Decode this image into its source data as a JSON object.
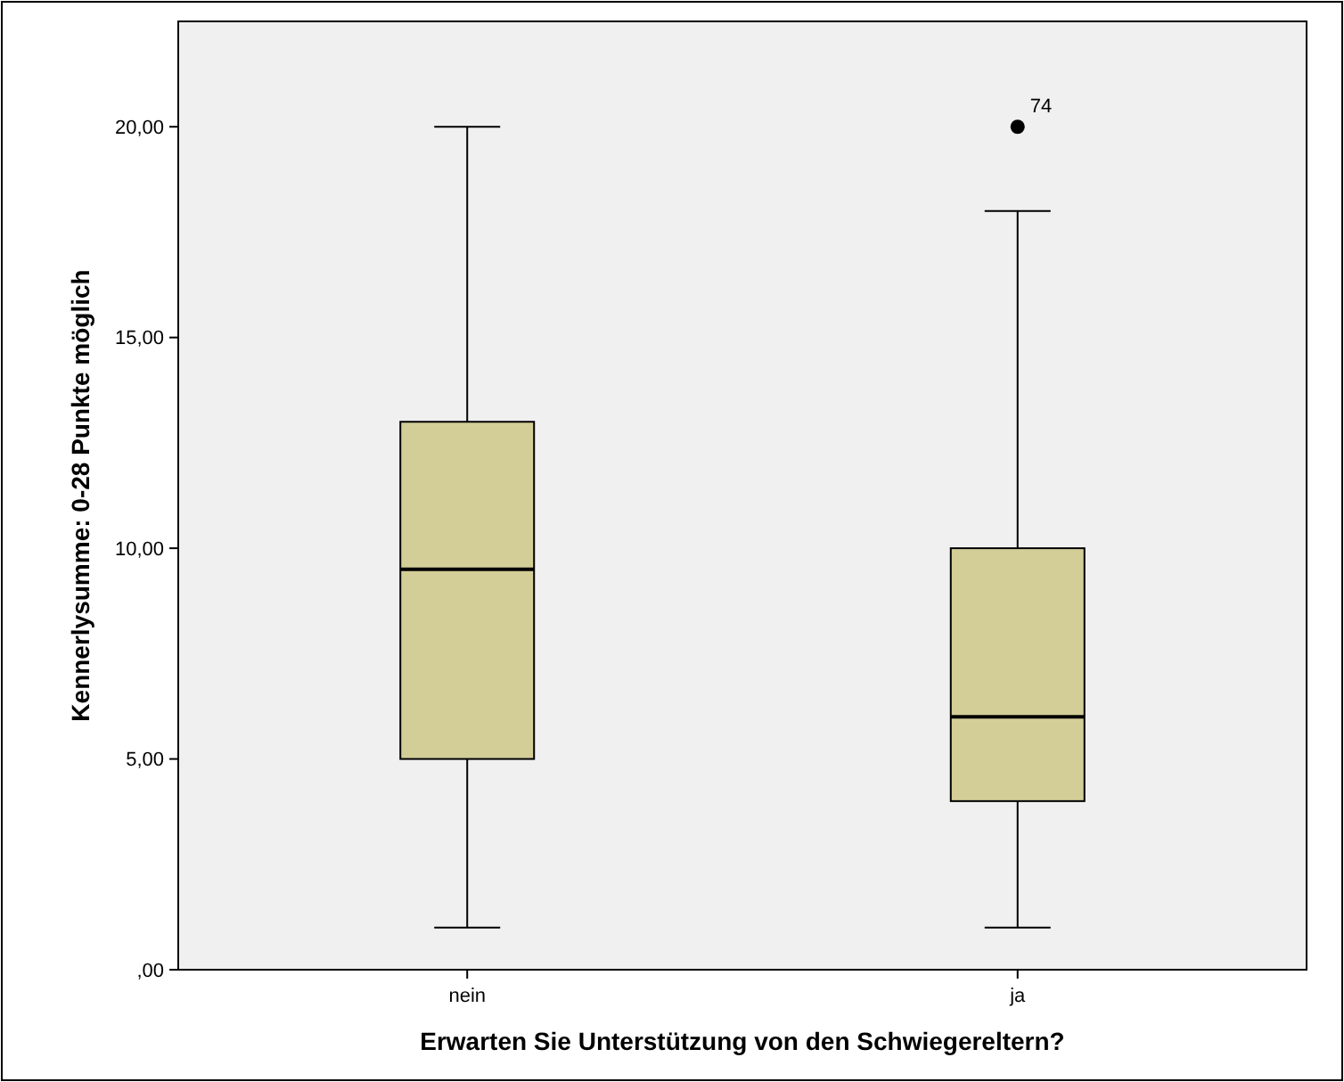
{
  "chart_data": {
    "type": "box",
    "xlabel": "Erwarten Sie Unterstützung von den Schwiegereltern?",
    "ylabel": "Kennerlysumme: 0-28 Punkte möglich",
    "categories": [
      "nein",
      "ja"
    ],
    "boxes": [
      {
        "low": 1,
        "q1": 5,
        "median": 9.5,
        "q3": 13,
        "high": 20
      },
      {
        "low": 1,
        "q1": 4,
        "median": 6,
        "q3": 10,
        "high": 18,
        "outliers": [
          20
        ]
      }
    ],
    "color": "#d3ce98",
    "ylim": [
      0,
      22.5
    ],
    "yticks": [
      {
        "value": 0,
        "label": ",00"
      },
      {
        "value": 5,
        "label": "5,00"
      },
      {
        "value": 10,
        "label": "10,00"
      },
      {
        "value": 15,
        "label": "15,00"
      },
      {
        "value": 20,
        "label": "20,00"
      }
    ],
    "annotations": [
      "74"
    ]
  }
}
